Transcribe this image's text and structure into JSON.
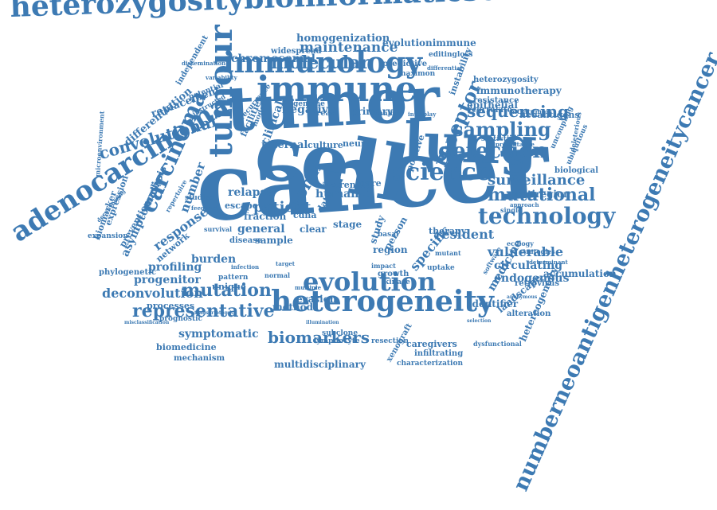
{
  "cloud": {
    "color": "#3d7ab3",
    "words": [
      "heterozygositybioinformaticschromosomal",
      "numberneoantigenheterogeneitycancer",
      "adenocarcinoma",
      "cancer",
      "tumor",
      "cell",
      "lung",
      "immune",
      "immunology",
      "tumour",
      "heterogeneity",
      "evolution",
      "science",
      "detection",
      "sampling",
      "sequencing",
      "technology",
      "mutational",
      "mutation",
      "representative",
      "biomarkers",
      "carcinoma",
      "receptor",
      "molecular",
      "maintenance",
      "homogenization",
      "evolutionimmune",
      "editingloss",
      "predictive",
      "differential",
      "maximon",
      "chromosomal",
      "widespread",
      "dissemination",
      "variability",
      "convolutional",
      "replacement",
      "differentiation",
      "potential",
      "independent",
      "microenvironment",
      "surveillance",
      "multiregion",
      "epithelial",
      "neoantigens",
      "heterozygosity",
      "immunotherapy",
      "resistance",
      "correlate",
      "intratumor",
      "instability",
      "vulnerable",
      "resident",
      "circulating",
      "accumulation",
      "endogenous",
      "retrovirus",
      "medicine",
      "landscape",
      "identifier",
      "alteration",
      "hetereogeneity",
      "deconvolution",
      "progenitor",
      "profiling",
      "phylogenetic",
      "burden",
      "network",
      "response",
      "asymptomatic",
      "analysis",
      "expression",
      "prevention",
      "biomarker",
      "expansion",
      "symptomatic",
      "biomedicine",
      "mechanism",
      "multidisciplinary",
      "caregivers",
      "infiltrating",
      "characterization",
      "xenograft",
      "lymphocyte",
      "evasion",
      "method",
      "processes",
      "prognostic",
      "clonal",
      "patient",
      "relapse",
      "fraction",
      "general",
      "sample",
      "disease",
      "escape",
      "human",
      "renal",
      "care",
      "stage",
      "region",
      "basal",
      "therapy",
      "specific",
      "person",
      "positive",
      "growth",
      "kinase",
      "uptake",
      "study",
      "neural",
      "culture",
      "internal",
      "negative",
      "primary",
      "breast",
      "genome",
      "clinical",
      "facilities",
      "model",
      "recurrence",
      "number",
      "studies",
      "biological",
      "ubiquitous",
      "uncoupling",
      "deleterious",
      "statistic",
      "preventative",
      "strategies",
      "software",
      "dysfunctional",
      "subclone",
      "resection",
      "unique",
      "pattern",
      "inhibit",
      "interplay",
      "approach",
      "single",
      "cdna",
      "clear",
      "data",
      "micro",
      "survival",
      "multiple",
      "target",
      "normal",
      "mutant",
      "impact",
      "illumination",
      "anonymous",
      "determinant",
      "selection",
      "infection",
      "transcriptomic",
      "misclassification",
      "ecology",
      "instructed",
      "repertoire",
      "feedback",
      "deconvolving"
    ]
  }
}
